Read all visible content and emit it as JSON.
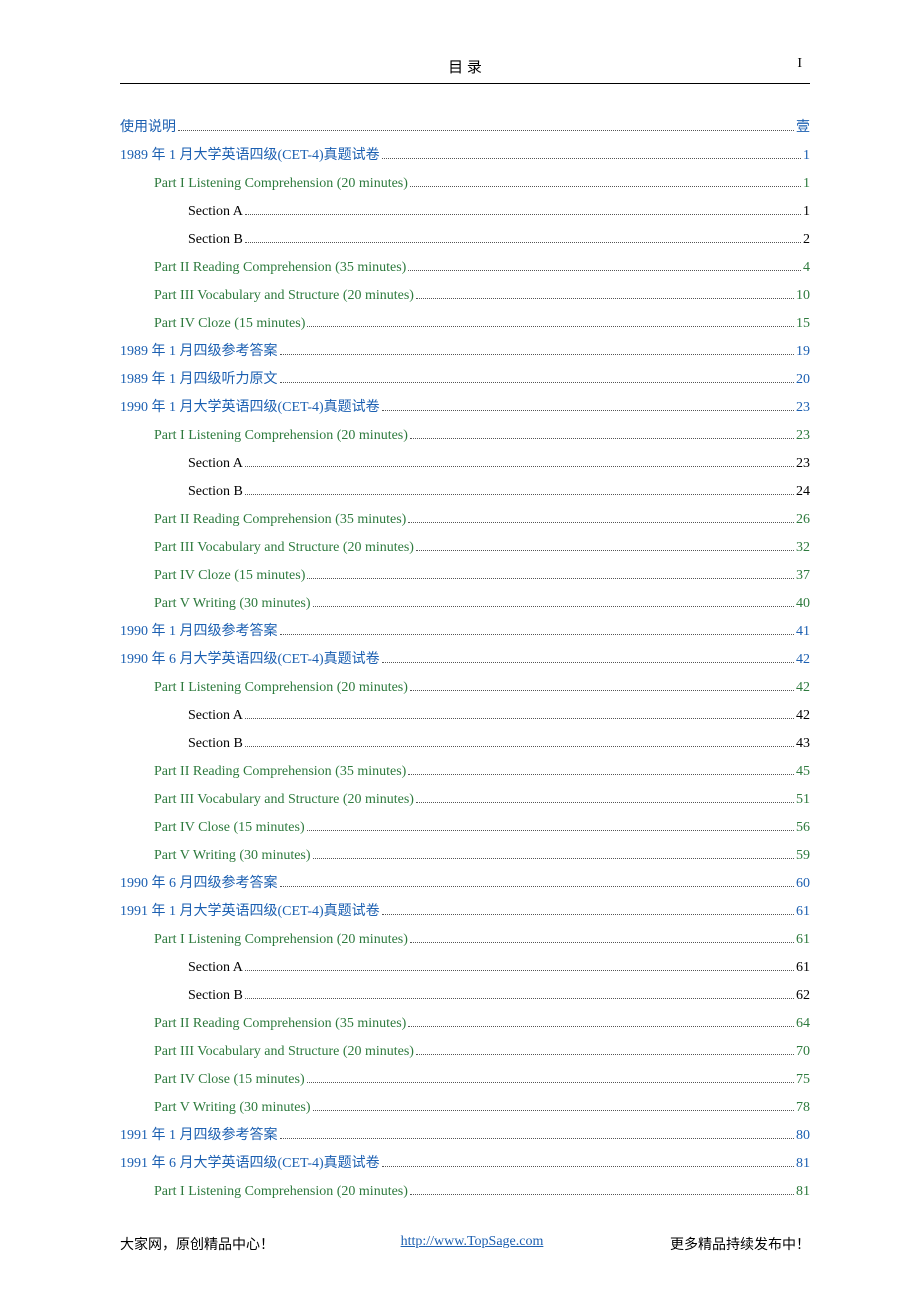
{
  "header": {
    "title": "目 录",
    "page_marker": "I"
  },
  "colors": {
    "blue": "#1b5fb1",
    "green": "#2d7a3d",
    "black": "#000000"
  },
  "toc": [
    {
      "level": 0,
      "color": "blue",
      "label": "使用说明",
      "page": "壹"
    },
    {
      "level": 0,
      "color": "blue",
      "label": "1989 年 1 月大学英语四级(CET-4)真题试卷",
      "page": "1"
    },
    {
      "level": 1,
      "color": "green",
      "label": "Part I Listening Comprehension (20 minutes)",
      "page": "1"
    },
    {
      "level": 2,
      "color": "black",
      "label": "Section A",
      "page": "1"
    },
    {
      "level": 2,
      "color": "black",
      "label": "Section B",
      "page": "2"
    },
    {
      "level": 1,
      "color": "green",
      "label": "Part II Reading Comprehension (35 minutes)",
      "page": "4"
    },
    {
      "level": 1,
      "color": "green",
      "label": "Part III Vocabulary and Structure (20 minutes)",
      "page": "10"
    },
    {
      "level": 1,
      "color": "green",
      "label": "Part IV Cloze (15 minutes)",
      "page": "15"
    },
    {
      "level": 0,
      "color": "blue",
      "label": "1989 年 1 月四级参考答案",
      "page": "19"
    },
    {
      "level": 0,
      "color": "blue",
      "label": "1989 年 1 月四级听力原文",
      "page": "20"
    },
    {
      "level": 0,
      "color": "blue",
      "label": "1990 年 1 月大学英语四级(CET-4)真题试卷",
      "page": "23"
    },
    {
      "level": 1,
      "color": "green",
      "label": "Part I Listening Comprehension (20 minutes)",
      "page": "23"
    },
    {
      "level": 2,
      "color": "black",
      "label": "Section A",
      "page": "23"
    },
    {
      "level": 2,
      "color": "black",
      "label": "Section B",
      "page": "24"
    },
    {
      "level": 1,
      "color": "green",
      "label": "Part II Reading Comprehension (35 minutes)",
      "page": "26"
    },
    {
      "level": 1,
      "color": "green",
      "label": "Part III Vocabulary and Structure (20 minutes)",
      "page": "32"
    },
    {
      "level": 1,
      "color": "green",
      "label": "Part IV Cloze (15 minutes)",
      "page": "37"
    },
    {
      "level": 1,
      "color": "green",
      "label": "Part V Writing (30 minutes)",
      "page": "40"
    },
    {
      "level": 0,
      "color": "blue",
      "label": "1990 年 1 月四级参考答案",
      "page": "41"
    },
    {
      "level": 0,
      "color": "blue",
      "label": "1990 年 6 月大学英语四级(CET-4)真题试卷",
      "page": "42"
    },
    {
      "level": 1,
      "color": "green",
      "label": "Part I Listening Comprehension (20 minutes)",
      "page": "42"
    },
    {
      "level": 2,
      "color": "black",
      "label": "Section A",
      "page": "42"
    },
    {
      "level": 2,
      "color": "black",
      "label": "Section B",
      "page": "43"
    },
    {
      "level": 1,
      "color": "green",
      "label": "Part II Reading Comprehension (35 minutes)",
      "page": "45"
    },
    {
      "level": 1,
      "color": "green",
      "label": "Part III Vocabulary and Structure (20 minutes)",
      "page": "51"
    },
    {
      "level": 1,
      "color": "green",
      "label": "Part IV Close (15 minutes)",
      "page": "56"
    },
    {
      "level": 1,
      "color": "green",
      "label": "Part V Writing (30 minutes)",
      "page": "59"
    },
    {
      "level": 0,
      "color": "blue",
      "label": "1990 年 6 月四级参考答案",
      "page": "60"
    },
    {
      "level": 0,
      "color": "blue",
      "label": "1991 年 1 月大学英语四级(CET-4)真题试卷",
      "page": "61"
    },
    {
      "level": 1,
      "color": "green",
      "label": "Part I Listening Comprehension (20 minutes)",
      "page": "61"
    },
    {
      "level": 2,
      "color": "black",
      "label": "Section A",
      "page": "61"
    },
    {
      "level": 2,
      "color": "black",
      "label": "Section B",
      "page": "62"
    },
    {
      "level": 1,
      "color": "green",
      "label": "Part II Reading Comprehension (35 minutes)",
      "page": "64"
    },
    {
      "level": 1,
      "color": "green",
      "label": "Part III Vocabulary and Structure (20 minutes)",
      "page": "70"
    },
    {
      "level": 1,
      "color": "green",
      "label": "Part IV Close (15 minutes)",
      "page": "75"
    },
    {
      "level": 1,
      "color": "green",
      "label": "Part V Writing (30 minutes)",
      "page": "78"
    },
    {
      "level": 0,
      "color": "blue",
      "label": "1991 年 1 月四级参考答案",
      "page": "80"
    },
    {
      "level": 0,
      "color": "blue",
      "label": "1991 年 6 月大学英语四级(CET-4)真题试卷",
      "page": "81"
    },
    {
      "level": 1,
      "color": "green",
      "label": "Part I Listening Comprehension (20 minutes)",
      "page": "81"
    }
  ],
  "footer": {
    "left": "大家网，原创精品中心！",
    "link_text": "http://www.TopSage.com",
    "right": "更多精品持续发布中！"
  }
}
